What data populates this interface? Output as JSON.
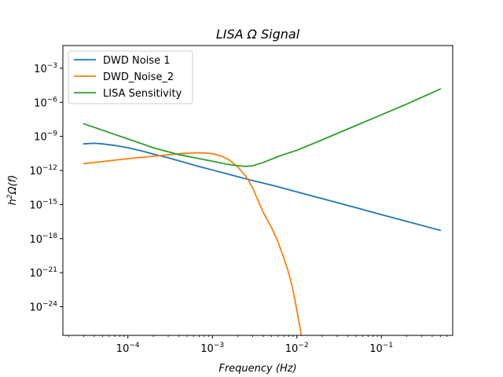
{
  "chart_data": {
    "type": "line",
    "title": "LISA Ω Signal",
    "xlabel": "Frequency  (Hz)",
    "ylabel_prefix": "h",
    "ylabel_sup": "2",
    "ylabel_suffix": "Ω(f)",
    "xscale": "log",
    "yscale": "log",
    "xlim": [
      1.7e-05,
      0.7
    ],
    "ylim": [
      3e-27,
      0.1
    ],
    "grid": false,
    "legend_position": "top-left",
    "x_ticks": [
      {
        "value": 0.0001,
        "base": "10",
        "exp": "−4"
      },
      {
        "value": 0.001,
        "base": "10",
        "exp": "−3"
      },
      {
        "value": 0.01,
        "base": "10",
        "exp": "−2"
      },
      {
        "value": 0.1,
        "base": "10",
        "exp": "−1"
      }
    ],
    "y_ticks": [
      {
        "value": 1e-24,
        "base": "10",
        "exp": "−24"
      },
      {
        "value": 1e-21,
        "base": "10",
        "exp": "−21"
      },
      {
        "value": 1e-18,
        "base": "10",
        "exp": "−18"
      },
      {
        "value": 1e-15,
        "base": "10",
        "exp": "−15"
      },
      {
        "value": 1e-12,
        "base": "10",
        "exp": "−12"
      },
      {
        "value": 1e-09,
        "base": "10",
        "exp": "−9"
      },
      {
        "value": 1e-06,
        "base": "10",
        "exp": "−6"
      },
      {
        "value": 0.001,
        "base": "10",
        "exp": "−3"
      }
    ],
    "series": [
      {
        "name": "DWD Noise 1",
        "color": "#1f77b4",
        "x": [
          3e-05,
          4e-05,
          5e-05,
          7e-05,
          0.0001,
          0.00015,
          0.0002,
          0.0003,
          0.0005,
          0.0007,
          0.001,
          0.0015,
          0.002,
          0.003,
          0.005,
          0.01,
          0.02,
          0.05,
          0.1,
          0.2,
          0.5
        ],
        "y": [
          2.2e-10,
          2.5e-10,
          2.2e-10,
          1.6e-10,
          1e-10,
          5e-11,
          2.8e-11,
          1.3e-11,
          4.5e-12,
          2.2e-12,
          1.1e-12,
          5e-13,
          2.8e-13,
          1.3e-13,
          5.2e-14,
          1.3e-14,
          3.3e-15,
          5.3e-16,
          1.3e-16,
          3.3e-17,
          5.3e-18
        ]
      },
      {
        "name": "DWD_Noise_2",
        "color": "#ff7f0e",
        "x": [
          3e-05,
          5e-05,
          0.0001,
          0.0002,
          0.0004,
          0.0006,
          0.0008,
          0.001,
          0.0013,
          0.0016,
          0.002,
          0.0025,
          0.003,
          0.004,
          0.005,
          0.006,
          0.007,
          0.008,
          0.009,
          0.01,
          0.011,
          0.0115,
          0.012
        ],
        "y": [
          4e-12,
          6e-12,
          1.1e-11,
          1.8e-11,
          3e-11,
          3.5e-11,
          3.5e-11,
          3e-11,
          1.8e-11,
          8e-12,
          2e-12,
          3e-13,
          3e-14,
          2e-16,
          1e-17,
          5e-19,
          2e-20,
          1e-21,
          3e-23,
          5e-25,
          1e-26,
          1e-27,
          1e-28
        ]
      },
      {
        "name": "LISA Sensitivity",
        "color": "#2ca02c",
        "x": [
          3e-05,
          5e-05,
          0.0001,
          0.0002,
          0.0004,
          0.0007,
          0.001,
          0.0015,
          0.002,
          0.0025,
          0.003,
          0.004,
          0.006,
          0.01,
          0.02,
          0.05,
          0.1,
          0.2,
          0.5
        ],
        "y": [
          1.3e-08,
          3.5e-09,
          6e-10,
          1e-10,
          2.5e-11,
          1.1e-11,
          6.5e-12,
          3.5e-12,
          2.6e-12,
          2.3e-12,
          2.6e-12,
          5e-12,
          1.7e-11,
          6e-11,
          5e-10,
          9e-09,
          8e-08,
          7e-07,
          1.5e-05
        ]
      }
    ]
  }
}
